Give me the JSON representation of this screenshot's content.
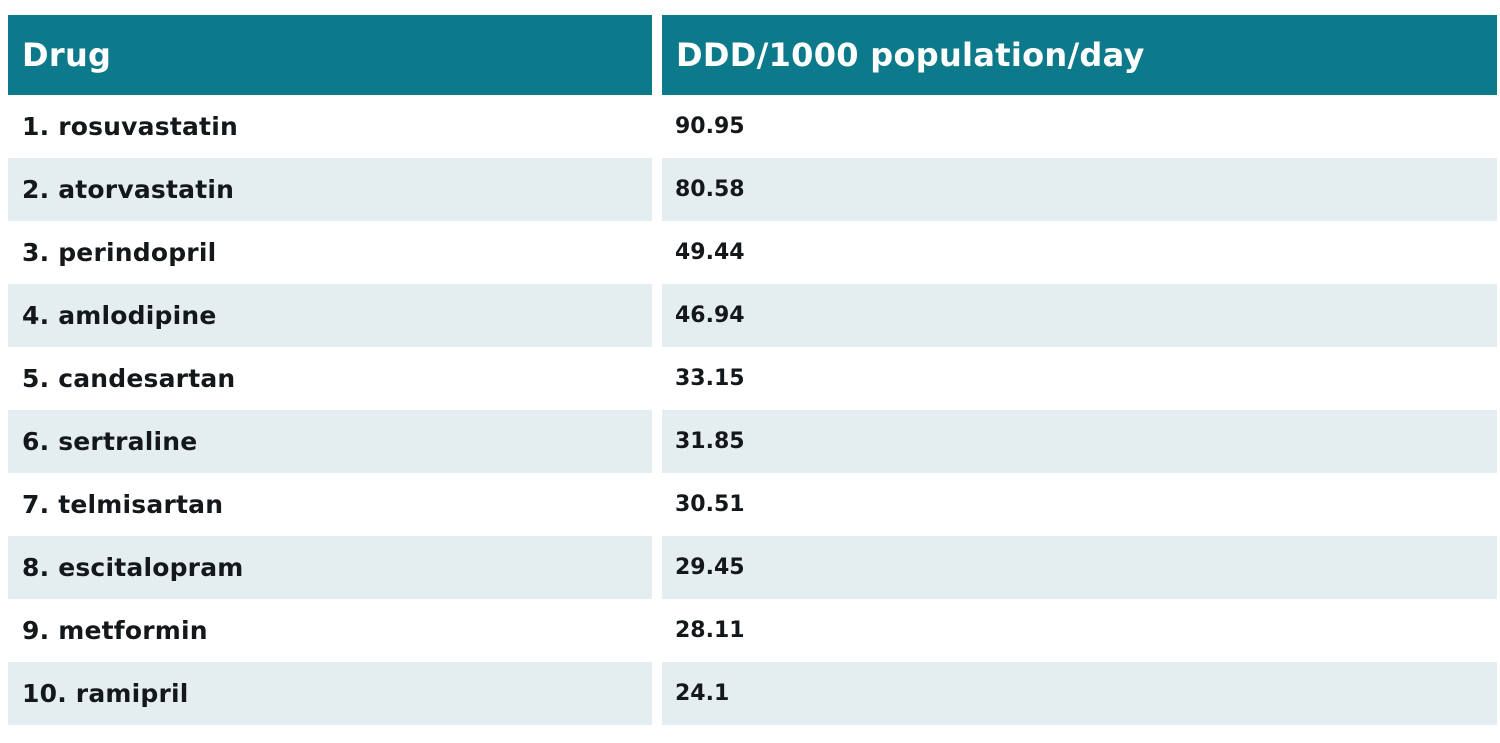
{
  "colors": {
    "header_bg": "#0d7a8b",
    "header_text": "#ffffff",
    "row_alt_bg": "#e4eef1",
    "row_bg": "#ffffff",
    "text": "#15181a",
    "page_bg": "#ffffff"
  },
  "table": {
    "columns": [
      {
        "label": "Drug"
      },
      {
        "label": "DDD/1000 population/day"
      }
    ],
    "rows": [
      {
        "drug": "1. rosuvastatin",
        "value": "90.95"
      },
      {
        "drug": "2. atorvastatin",
        "value": "80.58"
      },
      {
        "drug": "3. perindopril",
        "value": "49.44"
      },
      {
        "drug": "4. amlodipine",
        "value": "46.94"
      },
      {
        "drug": "5. candesartan",
        "value": "33.15"
      },
      {
        "drug": "6. sertraline",
        "value": "31.85"
      },
      {
        "drug": "7. telmisartan",
        "value": "30.51"
      },
      {
        "drug": "8. escitalopram",
        "value": "29.45"
      },
      {
        "drug": "9. metformin",
        "value": "28.11"
      },
      {
        "drug": "10. ramipril",
        "value": "24.1"
      }
    ]
  },
  "chart_data": {
    "type": "table",
    "title": "",
    "columns": [
      "Drug",
      "DDD/1000 population/day"
    ],
    "rows": [
      [
        "1. rosuvastatin",
        90.95
      ],
      [
        "2. atorvastatin",
        80.58
      ],
      [
        "3. perindopril",
        49.44
      ],
      [
        "4. amlodipine",
        46.94
      ],
      [
        "5. candesartan",
        33.15
      ],
      [
        "6. sertraline",
        31.85
      ],
      [
        "7. telmisartan",
        30.51
      ],
      [
        "8. escitalopram",
        29.45
      ],
      [
        "9. metformin",
        28.11
      ],
      [
        "10. ramipril",
        24.1
      ]
    ]
  }
}
